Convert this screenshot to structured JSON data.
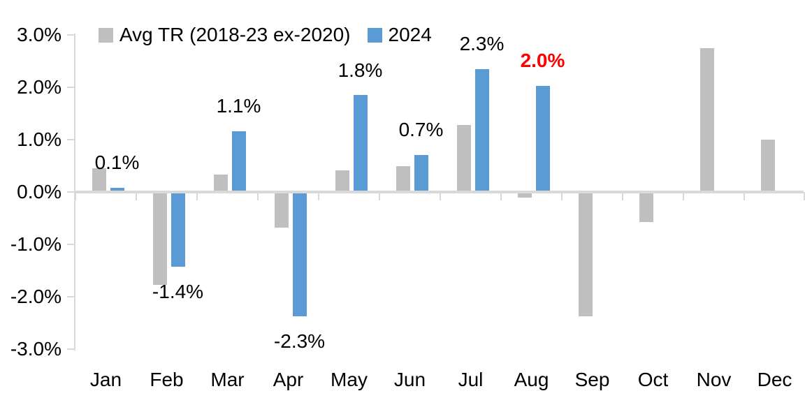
{
  "legend": {
    "series1_label": "Avg TR (2018-23 ex-2020)",
    "series2_label": "2024"
  },
  "colors": {
    "gray_series": "#bfbfbf",
    "blue_series": "#5b9bd5",
    "axis": "#d9d9d9",
    "label_default": "#000000",
    "label_highlight": "#ff0000"
  },
  "chart_data": {
    "type": "bar",
    "title": "",
    "xlabel": "",
    "ylabel": "",
    "categories": [
      "Jan",
      "Feb",
      "Mar",
      "Apr",
      "May",
      "Jun",
      "Jul",
      "Aug",
      "Sep",
      "Oct",
      "Nov",
      "Dec"
    ],
    "series": [
      {
        "name": "Avg TR (2018-23 ex-2020)",
        "color": "#bfbfbf",
        "values": [
          0.43,
          -1.75,
          0.3,
          -0.65,
          0.38,
          0.47,
          1.25,
          -0.08,
          -2.35,
          -0.55,
          2.72,
          0.97
        ]
      },
      {
        "name": "2024",
        "color": "#5b9bd5",
        "values": [
          0.05,
          -1.4,
          1.13,
          -2.35,
          1.82,
          0.68,
          2.32,
          2.0,
          null,
          null,
          null,
          null
        ]
      }
    ],
    "data_labels": [
      {
        "text": "0.1%",
        "color": "#000000",
        "bold": false
      },
      {
        "text": "-1.4%",
        "color": "#000000",
        "bold": false
      },
      {
        "text": "1.1%",
        "color": "#000000",
        "bold": false
      },
      {
        "text": "-2.3%",
        "color": "#000000",
        "bold": false
      },
      {
        "text": "1.8%",
        "color": "#000000",
        "bold": false
      },
      {
        "text": "0.7%",
        "color": "#000000",
        "bold": false
      },
      {
        "text": "2.3%",
        "color": "#000000",
        "bold": false
      },
      {
        "text": "2.0%",
        "color": "#ff0000",
        "bold": true
      },
      null,
      null,
      null,
      null
    ],
    "y_axis": {
      "ticks": [
        {
          "label": "3.0%",
          "value": 3
        },
        {
          "label": "2.0%",
          "value": 2
        },
        {
          "label": "1.0%",
          "value": 1
        },
        {
          "label": "0.0%",
          "value": 0
        },
        {
          "label": "-1.0%",
          "value": -1
        },
        {
          "label": "-2.0%",
          "value": -2
        },
        {
          "label": "-3.0%",
          "value": -3
        }
      ],
      "ylim": [
        -3,
        3
      ]
    },
    "legend_position": "top",
    "grid": false
  }
}
